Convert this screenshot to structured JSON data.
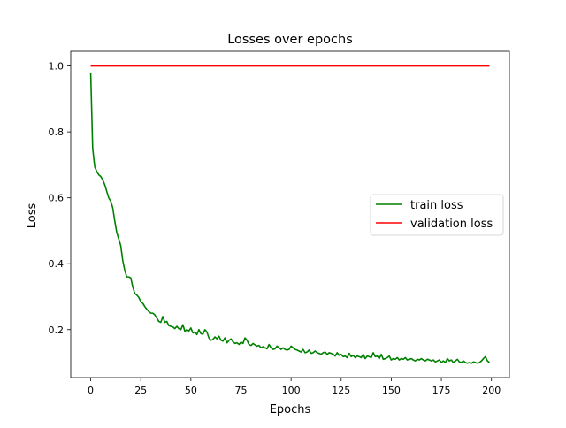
{
  "chart_data": {
    "type": "line",
    "title": "Losses over epochs",
    "xlabel": "Epochs",
    "ylabel": "Loss",
    "xlim": [
      -9.95,
      208.95
    ],
    "ylim": [
      0.0545,
      1.0445
    ],
    "xticks": [
      0,
      25,
      50,
      75,
      100,
      125,
      150,
      175,
      200
    ],
    "yticks": [
      0.2,
      0.4,
      0.6,
      0.8,
      1.0
    ],
    "xtick_labels": [
      "0",
      "25",
      "50",
      "75",
      "100",
      "125",
      "150",
      "175",
      "200"
    ],
    "ytick_labels": [
      "0.2",
      "0.4",
      "0.6",
      "0.8",
      "1.0"
    ],
    "grid": false,
    "legend_position": "center-right",
    "series": [
      {
        "name": "train loss",
        "color": "#008000",
        "x": [
          0,
          1,
          2,
          3,
          4,
          5,
          6,
          7,
          8,
          9,
          10,
          11,
          12,
          13,
          14,
          15,
          16,
          17,
          18,
          19,
          20,
          21,
          22,
          23,
          24,
          25,
          26,
          27,
          28,
          29,
          30,
          31,
          32,
          33,
          34,
          35,
          36,
          37,
          38,
          39,
          40,
          41,
          42,
          43,
          44,
          45,
          46,
          47,
          48,
          49,
          50,
          51,
          52,
          53,
          54,
          55,
          56,
          57,
          58,
          59,
          60,
          61,
          62,
          63,
          64,
          65,
          66,
          67,
          68,
          69,
          70,
          71,
          72,
          73,
          74,
          75,
          76,
          77,
          78,
          79,
          80,
          81,
          82,
          83,
          84,
          85,
          86,
          87,
          88,
          89,
          90,
          91,
          92,
          93,
          94,
          95,
          96,
          97,
          98,
          99,
          100,
          101,
          102,
          103,
          104,
          105,
          106,
          107,
          108,
          109,
          110,
          111,
          112,
          113,
          114,
          115,
          116,
          117,
          118,
          119,
          120,
          121,
          122,
          123,
          124,
          125,
          126,
          127,
          128,
          129,
          130,
          131,
          132,
          133,
          134,
          135,
          136,
          137,
          138,
          139,
          140,
          141,
          142,
          143,
          144,
          145,
          146,
          147,
          148,
          149,
          150,
          151,
          152,
          153,
          154,
          155,
          156,
          157,
          158,
          159,
          160,
          161,
          162,
          163,
          164,
          165,
          166,
          167,
          168,
          169,
          170,
          171,
          172,
          173,
          174,
          175,
          176,
          177,
          178,
          179,
          180,
          181,
          182,
          183,
          184,
          185,
          186,
          187,
          188,
          189,
          190,
          191,
          192,
          193,
          194,
          195,
          196,
          197,
          198,
          199
        ],
        "values": [
          0.98,
          0.75,
          0.695,
          0.68,
          0.67,
          0.665,
          0.655,
          0.64,
          0.62,
          0.6,
          0.59,
          0.57,
          0.53,
          0.495,
          0.475,
          0.455,
          0.41,
          0.38,
          0.36,
          0.36,
          0.357,
          0.33,
          0.31,
          0.305,
          0.298,
          0.285,
          0.28,
          0.27,
          0.262,
          0.255,
          0.25,
          0.25,
          0.245,
          0.235,
          0.225,
          0.222,
          0.24,
          0.222,
          0.225,
          0.212,
          0.21,
          0.208,
          0.203,
          0.21,
          0.203,
          0.2,
          0.215,
          0.195,
          0.2,
          0.196,
          0.205,
          0.19,
          0.193,
          0.185,
          0.2,
          0.188,
          0.186,
          0.2,
          0.193,
          0.175,
          0.168,
          0.17,
          0.178,
          0.172,
          0.18,
          0.168,
          0.165,
          0.175,
          0.16,
          0.167,
          0.172,
          0.163,
          0.158,
          0.16,
          0.155,
          0.162,
          0.158,
          0.175,
          0.168,
          0.155,
          0.152,
          0.158,
          0.154,
          0.15,
          0.152,
          0.145,
          0.148,
          0.145,
          0.142,
          0.155,
          0.145,
          0.14,
          0.142,
          0.15,
          0.145,
          0.14,
          0.145,
          0.14,
          0.138,
          0.14,
          0.15,
          0.145,
          0.14,
          0.138,
          0.135,
          0.132,
          0.14,
          0.13,
          0.132,
          0.138,
          0.128,
          0.13,
          0.135,
          0.13,
          0.128,
          0.125,
          0.13,
          0.132,
          0.125,
          0.13,
          0.128,
          0.125,
          0.12,
          0.13,
          0.122,
          0.125,
          0.118,
          0.12,
          0.115,
          0.128,
          0.118,
          0.122,
          0.115,
          0.12,
          0.118,
          0.115,
          0.125,
          0.112,
          0.12,
          0.118,
          0.115,
          0.13,
          0.118,
          0.12,
          0.112,
          0.125,
          0.11,
          0.112,
          0.115,
          0.12,
          0.108,
          0.112,
          0.11,
          0.115,
          0.108,
          0.112,
          0.11,
          0.115,
          0.108,
          0.11,
          0.112,
          0.108,
          0.105,
          0.11,
          0.108,
          0.112,
          0.108,
          0.105,
          0.11,
          0.108,
          0.105,
          0.108,
          0.102,
          0.105,
          0.108,
          0.1,
          0.105,
          0.1,
          0.112,
          0.105,
          0.108,
          0.1,
          0.105,
          0.11,
          0.102,
          0.1,
          0.105,
          0.1,
          0.098,
          0.1,
          0.098,
          0.102,
          0.1,
          0.098,
          0.1,
          0.105,
          0.112,
          0.118,
          0.105,
          0.1
        ]
      },
      {
        "name": "validation loss",
        "color": "#ff0000",
        "x": [
          0,
          199
        ],
        "values": [
          1.0,
          1.0
        ]
      }
    ]
  }
}
